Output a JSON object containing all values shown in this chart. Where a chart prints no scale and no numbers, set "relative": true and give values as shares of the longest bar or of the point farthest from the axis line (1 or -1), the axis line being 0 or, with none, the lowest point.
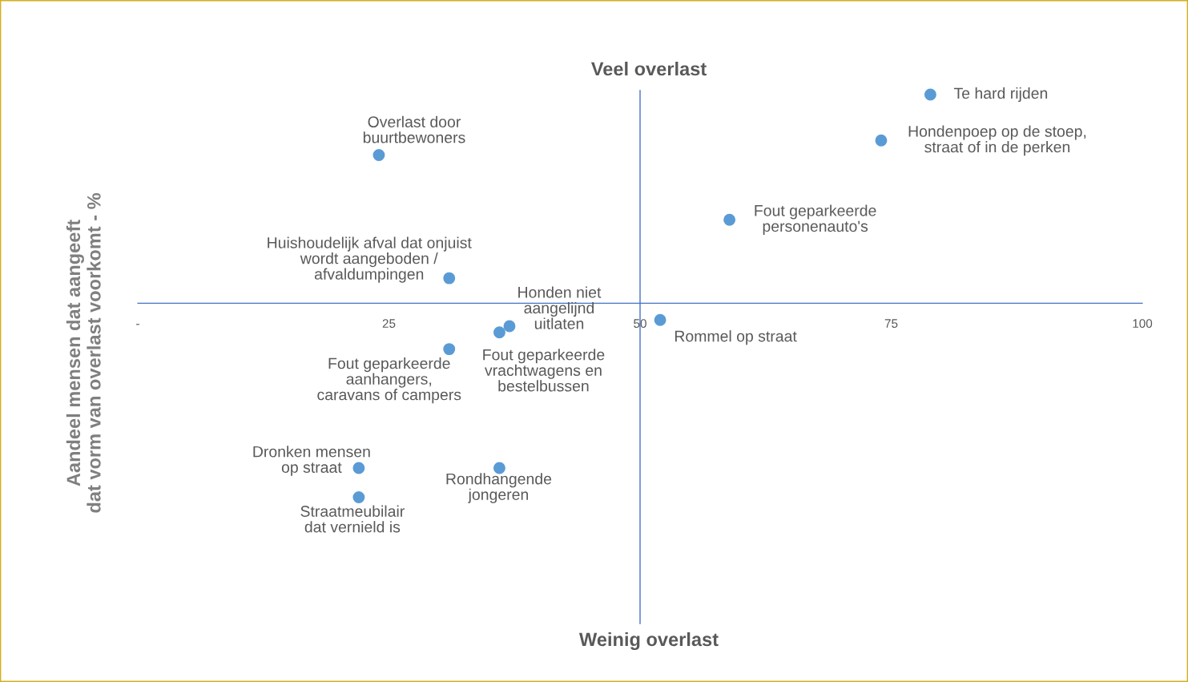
{
  "chart_data": {
    "type": "scatter",
    "relative": true,
    "ylabel": "Aandeel mensen dat aangeeft\ndat vorm van overlast voorkomt - %",
    "xlim": [
      0,
      100
    ],
    "xticks": [
      {
        "value": 0,
        "label": "-"
      },
      25,
      50,
      75,
      100
    ],
    "x": [
      78.9,
      74.0,
      58.9,
      24.0,
      31.0,
      37.0,
      52.0,
      36.0,
      31.0,
      22.0,
      22.0,
      36.0
    ],
    "series": [
      {
        "color": "#5b9bd5",
        "values": [
          1,
          0.78,
          0.4,
          0.71,
          0.12,
          -0.11,
          -0.08,
          -0.14,
          -0.22,
          -0.79,
          -0.93,
          -0.79
        ]
      }
    ],
    "marker": "circle",
    "grid": false,
    "legend": false,
    "ref_lines": [
      {
        "axis": "x",
        "value": 50,
        "color": "#4472c4"
      }
    ],
    "annotations": [
      {
        "text": "Te hard rijden",
        "x": 78.9,
        "y": 1
      },
      {
        "text": "Hondenpoep op de stoep,\nstraat of in de perken",
        "x": 74.0,
        "y": 0.78
      },
      {
        "text": "Fout geparkeerde\npersonenauto's",
        "x": 58.9,
        "y": 0.4
      },
      {
        "text": "Overlast door\nbuurtbewoners",
        "x": 24.0,
        "y": 0.71
      },
      {
        "text": "Huishoudelijk afval dat onjuist\nwordt aangeboden /\nafvaldumpingen",
        "x": 31.0,
        "y": 0.12
      },
      {
        "text": "Honden niet\naangelijnd\nuitlaten",
        "x": 37.0,
        "y": -0.11
      },
      {
        "text": "Rommel op straat",
        "x": 52.0,
        "y": -0.08
      },
      {
        "text": "Fout geparkeerde\nvrachtwagens en\nbestelbussen",
        "x": 36.0,
        "y": -0.14
      },
      {
        "text": "Fout geparkeerde\naanhangers,\ncaravans of campers",
        "x": 31.0,
        "y": -0.22
      },
      {
        "text": "Dronken mensen\nop straat",
        "x": 22.0,
        "y": -0.79
      },
      {
        "text": "Straatmeubilair\ndat vernield is",
        "x": 22.0,
        "y": -0.93
      },
      {
        "text": "Rondhangende\njongeren",
        "x": 36.0,
        "y": -0.79
      },
      "Veel overlast",
      "Weinig overlast"
    ]
  }
}
